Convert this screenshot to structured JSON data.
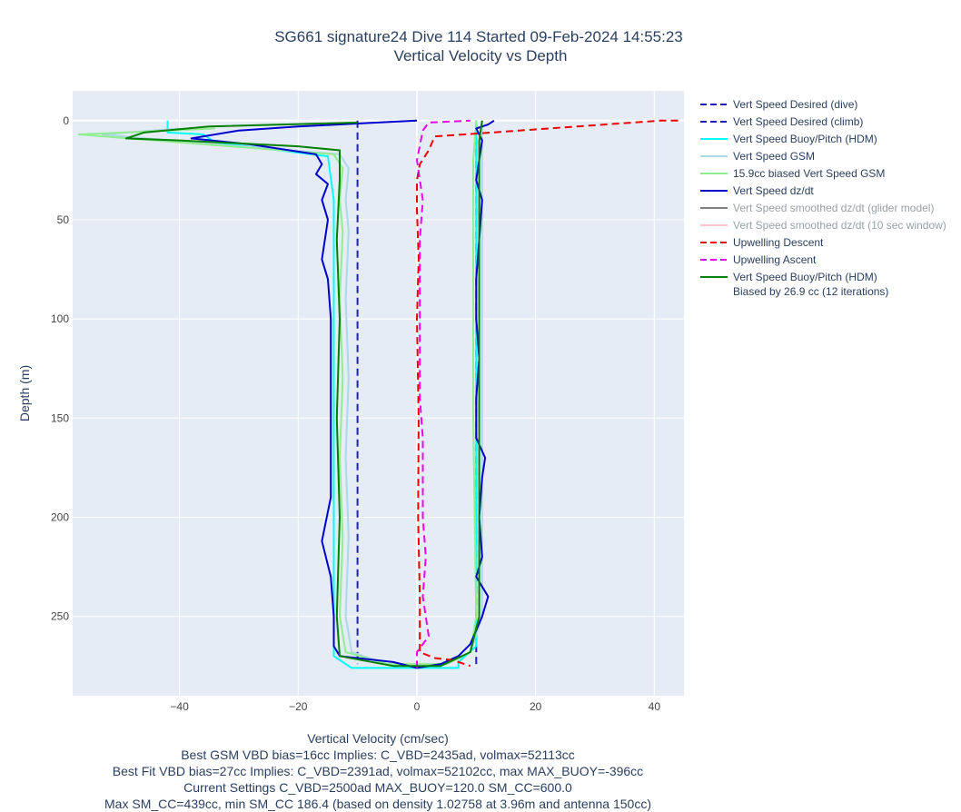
{
  "chart_data": {
    "type": "line",
    "title": "SG661 signature24 Dive 114 Started 09-Feb-2024 14:55:23",
    "subtitle": "Vertical Velocity vs Depth",
    "xlabel": "Vertical Velocity (cm/sec)",
    "ylabel": "Depth (m)",
    "xlim": [
      -58,
      45
    ],
    "ylim": [
      290,
      -15
    ],
    "y_reversed": true,
    "grid": true,
    "legend_position": "right",
    "xticks": [
      -40,
      -20,
      0,
      20,
      40
    ],
    "yticks": [
      0,
      50,
      100,
      150,
      200,
      250
    ],
    "xtick_labels": [
      "−40",
      "−20",
      "0",
      "20",
      "40"
    ],
    "ytick_labels": [
      "0",
      "50",
      "100",
      "150",
      "200",
      "250"
    ],
    "series": [
      {
        "name": "Vert Speed Desired (dive)",
        "color": "#1f1fbf",
        "dash": "dash",
        "width": 2,
        "points": [
          [
            -10,
            0
          ],
          [
            -10,
            274
          ]
        ]
      },
      {
        "name": "Vert Speed Desired (climb)",
        "color": "#1f1fbf",
        "dash": "dash",
        "width": 2,
        "points": [
          [
            10,
            274
          ],
          [
            10,
            0
          ]
        ]
      },
      {
        "name": "Vert Speed Buoy/Pitch (HDM)",
        "color": "#00ffff",
        "dash": "solid",
        "width": 2,
        "points": [
          [
            -42,
            0
          ],
          [
            -42,
            6
          ],
          [
            -36,
            7
          ],
          [
            -34,
            11
          ],
          [
            -15,
            18
          ],
          [
            -14,
            40
          ],
          [
            -14,
            100
          ],
          [
            -14,
            150
          ],
          [
            -14,
            200
          ],
          [
            -14,
            270
          ],
          [
            -11,
            276
          ],
          [
            7,
            276
          ],
          [
            7,
            273
          ],
          [
            10,
            265
          ],
          [
            10,
            150
          ],
          [
            10,
            50
          ],
          [
            10,
            0
          ]
        ]
      },
      {
        "name": "Vert Speed GSM",
        "color": "#add8e6",
        "dash": "solid",
        "width": 2,
        "points": [
          [
            -40,
            4
          ],
          [
            -53,
            7
          ],
          [
            -38,
            11
          ],
          [
            -13,
            17
          ],
          [
            -11.5,
            24
          ],
          [
            -12,
            40
          ],
          [
            -11.5,
            56
          ],
          [
            -12,
            90
          ],
          [
            -11.5,
            130
          ],
          [
            -12,
            170
          ],
          [
            -11.5,
            210
          ],
          [
            -12,
            250
          ],
          [
            -11,
            268
          ],
          [
            -5,
            274
          ],
          [
            5,
            274
          ],
          [
            9,
            268
          ],
          [
            11,
            250
          ],
          [
            11,
            150
          ],
          [
            11,
            50
          ],
          [
            11,
            20
          ],
          [
            11,
            0
          ]
        ]
      },
      {
        "name": "15.9cc biased Vert Speed GSM",
        "color": "#90ee90",
        "dash": "solid",
        "width": 2,
        "points": [
          [
            -34,
            4
          ],
          [
            -57,
            7
          ],
          [
            -40,
            11
          ],
          [
            -14,
            17
          ],
          [
            -12.5,
            24
          ],
          [
            -13,
            40
          ],
          [
            -12.5,
            56
          ],
          [
            -13,
            90
          ],
          [
            -12.5,
            130
          ],
          [
            -13,
            170
          ],
          [
            -12.5,
            210
          ],
          [
            -13,
            250
          ],
          [
            -12,
            268
          ],
          [
            -5,
            274
          ],
          [
            5,
            274
          ],
          [
            9,
            268
          ],
          [
            10,
            250
          ],
          [
            9.5,
            150
          ],
          [
            9.5,
            50
          ],
          [
            9.5,
            20
          ],
          [
            10,
            0
          ]
        ]
      },
      {
        "name": "Vert Speed dz/dt",
        "color": "#0000cd",
        "dash": "solid",
        "width": 2,
        "points": [
          [
            0,
            0
          ],
          [
            -20,
            3
          ],
          [
            -30,
            5
          ],
          [
            -38,
            9
          ],
          [
            -28,
            12
          ],
          [
            -17,
            17
          ],
          [
            -16,
            22
          ],
          [
            -17,
            27
          ],
          [
            -15,
            32
          ],
          [
            -16,
            40
          ],
          [
            -15,
            50
          ],
          [
            -15.5,
            60
          ],
          [
            -16,
            70
          ],
          [
            -15,
            80
          ],
          [
            -14.5,
            100
          ],
          [
            -14.5,
            130
          ],
          [
            -14.5,
            160
          ],
          [
            -14.5,
            190
          ],
          [
            -16,
            212
          ],
          [
            -14.5,
            230
          ],
          [
            -14,
            250
          ],
          [
            -14,
            265
          ],
          [
            -13,
            270
          ],
          [
            -4,
            273
          ],
          [
            0,
            276
          ],
          [
            4,
            274
          ],
          [
            7,
            270
          ],
          [
            9,
            264
          ],
          [
            11,
            250
          ],
          [
            12,
            240
          ],
          [
            10,
            230
          ],
          [
            11,
            220
          ],
          [
            10.5,
            200
          ],
          [
            11,
            180
          ],
          [
            11.5,
            170
          ],
          [
            10,
            160
          ],
          [
            10,
            140
          ],
          [
            10.5,
            120
          ],
          [
            10,
            100
          ],
          [
            10,
            80
          ],
          [
            10.5,
            60
          ],
          [
            11,
            40
          ],
          [
            10,
            30
          ],
          [
            10.5,
            20
          ],
          [
            11,
            10
          ],
          [
            10,
            4
          ],
          [
            12,
            2
          ],
          [
            13,
            0
          ]
        ]
      },
      {
        "name": "Vert Speed smoothed dz/dt (glider model)",
        "color": "#808080",
        "dash": "solid",
        "width": 2,
        "visible": "legendonly",
        "points": []
      },
      {
        "name": "Vert Speed smoothed dz/dt (10 sec window)",
        "color": "#ffc0cb",
        "dash": "solid",
        "width": 2,
        "visible": "legendonly",
        "points": []
      },
      {
        "name": "Upwelling Descent",
        "color": "#ee0000",
        "dash": "dash",
        "width": 2,
        "points": [
          [
            44,
            0
          ],
          [
            41,
            0
          ],
          [
            8,
            7
          ],
          [
            3,
            8
          ],
          [
            2,
            15
          ],
          [
            0.5,
            22
          ],
          [
            0,
            30
          ],
          [
            0,
            45
          ],
          [
            0.3,
            70
          ],
          [
            0,
            100
          ],
          [
            0.3,
            150
          ],
          [
            0.2,
            200
          ],
          [
            0.5,
            240
          ],
          [
            0.5,
            268
          ],
          [
            3,
            271
          ],
          [
            6,
            272
          ],
          [
            9,
            275
          ]
        ]
      },
      {
        "name": "Upwelling Ascent",
        "color": "#ee00ee",
        "dash": "dash",
        "width": 2,
        "points": [
          [
            0,
            276
          ],
          [
            0,
            268
          ],
          [
            2,
            260
          ],
          [
            1,
            240
          ],
          [
            1.5,
            220
          ],
          [
            1,
            200
          ],
          [
            1,
            180
          ],
          [
            1,
            160
          ],
          [
            0.5,
            140
          ],
          [
            0.5,
            120
          ],
          [
            0.5,
            100
          ],
          [
            0.5,
            80
          ],
          [
            0.5,
            60
          ],
          [
            1,
            40
          ],
          [
            0,
            20
          ],
          [
            1,
            5
          ],
          [
            2,
            1
          ],
          [
            9,
            0
          ]
        ]
      },
      {
        "name": "Vert Speed Buoy/Pitch (HDM)",
        "name2": "Biased by 26.9 cc (12 iterations)",
        "color": "#008000",
        "dash": "solid",
        "width": 2,
        "points": [
          [
            -10,
            1
          ],
          [
            -35,
            3
          ],
          [
            -46,
            6
          ],
          [
            -49,
            9
          ],
          [
            -40,
            10
          ],
          [
            -20,
            13
          ],
          [
            -13,
            15
          ],
          [
            -13,
            30
          ],
          [
            -13.5,
            60
          ],
          [
            -13,
            100
          ],
          [
            -13.5,
            150
          ],
          [
            -13,
            200
          ],
          [
            -13.5,
            250
          ],
          [
            -13,
            270
          ],
          [
            -4,
            275
          ],
          [
            4,
            275
          ],
          [
            9,
            268
          ],
          [
            10.5,
            250
          ],
          [
            10.5,
            150
          ],
          [
            10.5,
            50
          ],
          [
            10.5,
            10
          ],
          [
            11,
            0
          ]
        ]
      }
    ],
    "footer_lines": [
      "Best GSM VBD bias=16cc Implies: C_VBD=2435ad, volmax=52113cc",
      "Best Fit VBD bias=27cc Implies: C_VBD=2391ad, volmax=52102cc, max MAX_BUOY=-396cc",
      "Current Settings C_VBD=2500ad MAX_BUOY=120.0 SM_CC=600.0",
      "Max SM_CC=439cc, min SM_CC 186.4 (based on density 1.02758 at 3.96m and antenna 150cc)"
    ]
  }
}
